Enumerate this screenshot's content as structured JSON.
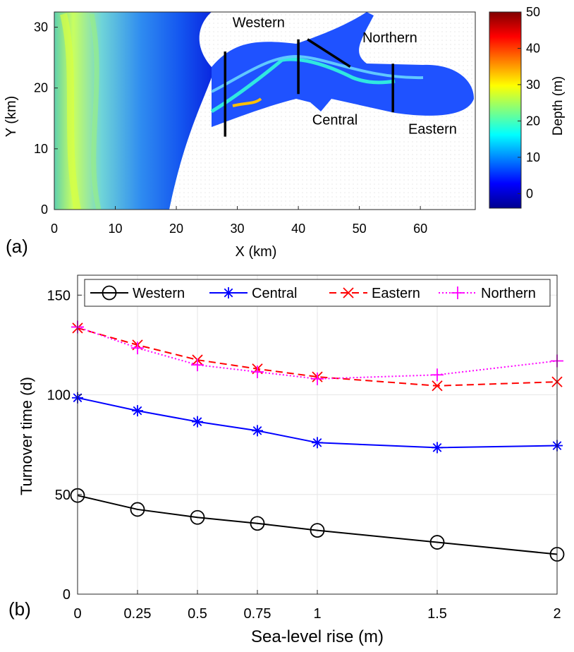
{
  "chart_data": [
    {
      "panel_label": "(a)",
      "type": "heatmap",
      "xlabel": "X (km)",
      "ylabel": "Y (km)",
      "xlim": [
        0,
        69
      ],
      "ylim": [
        0,
        32.5
      ],
      "xticks": [
        0,
        10,
        20,
        30,
        40,
        50,
        60
      ],
      "yticks": [
        0,
        10,
        20,
        30
      ],
      "colorbar": {
        "label": "Depth (m)",
        "range": [
          -4,
          50
        ],
        "ticks": [
          0,
          10,
          20,
          30,
          40,
          50
        ],
        "colormap": [
          "#00008f",
          "#0000ff",
          "#0080ff",
          "#00ffff",
          "#80ff80",
          "#ffff00",
          "#ff8000",
          "#ff0000",
          "#800000"
        ]
      },
      "transects": [
        {
          "name": "Western",
          "x1": 28,
          "y1": 12,
          "x2": 28,
          "y2": 26
        },
        {
          "name": "Central",
          "x1": 40,
          "y1": 19,
          "x2": 40,
          "y2": 28
        },
        {
          "name": "Northern",
          "x1": 41.5,
          "y1": 28,
          "x2": 48.5,
          "y2": 23.5
        },
        {
          "name": "Eastern",
          "x1": 55.5,
          "y1": 16,
          "x2": 55.5,
          "y2": 24
        }
      ],
      "region_labels": [
        {
          "text": "Western",
          "x": 33.5,
          "y": 30
        },
        {
          "text": "Northern",
          "x": 55,
          "y": 27.5
        },
        {
          "text": "Central",
          "x": 46,
          "y": 14
        },
        {
          "text": "Eastern",
          "x": 62,
          "y": 12.5
        }
      ]
    },
    {
      "panel_label": "(b)",
      "type": "line",
      "xlabel": "Sea-level rise (m)",
      "ylabel": "Turnover time (d)",
      "x": [
        0,
        0.25,
        0.5,
        0.75,
        1,
        1.5,
        2
      ],
      "x_tick_labels": [
        "0",
        "0.25",
        "0.5",
        "0.75",
        "1",
        "1.5",
        "2"
      ],
      "xlim": [
        0,
        2
      ],
      "ylim": [
        0,
        160
      ],
      "yticks": [
        0,
        50,
        100,
        150
      ],
      "grid": true,
      "legend_position": "top",
      "series": [
        {
          "name": "Western",
          "color": "#000000",
          "marker": "circle",
          "dash": "solid",
          "values": [
            49.5,
            42.5,
            38.5,
            35.5,
            32,
            26,
            20
          ]
        },
        {
          "name": "Central",
          "color": "#0000ff",
          "marker": "asterisk",
          "dash": "solid",
          "values": [
            98.5,
            92,
            86.5,
            82,
            76,
            73.5,
            74.5
          ]
        },
        {
          "name": "Eastern",
          "color": "#ff0000",
          "marker": "x",
          "dash": "dashed",
          "values": [
            133.5,
            125,
            117.5,
            113,
            109,
            104.5,
            106.5
          ]
        },
        {
          "name": "Northern",
          "color": "#ff00ff",
          "marker": "plus",
          "dash": "dotted",
          "values": [
            134,
            123.5,
            115,
            111.5,
            108,
            110,
            117
          ]
        }
      ]
    }
  ]
}
